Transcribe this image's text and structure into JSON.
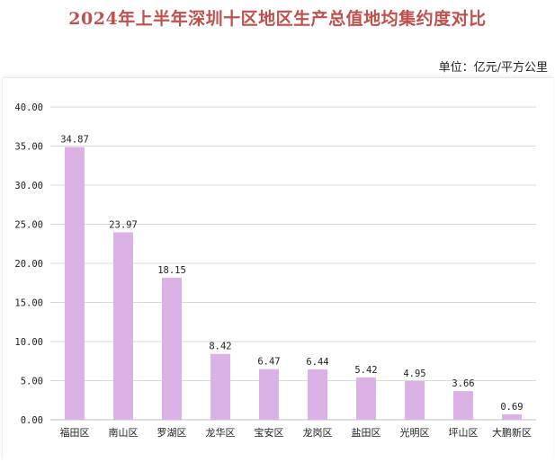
{
  "title": "2024年上半年深圳十区地区生产总值地均集约度对比",
  "unit": "单位：亿元/平方公里",
  "colors": {
    "bar": "#dab2e6",
    "grid": "#d9d9d9",
    "title": "#c0504d"
  },
  "chart_data": {
    "type": "bar",
    "title": "2024年上半年深圳十区地区生产总值地均集约度对比",
    "unit_note": "单位：亿元/平方公里",
    "categories": [
      "福田区",
      "南山区",
      "罗湖区",
      "龙华区",
      "宝安区",
      "龙岗区",
      "盐田区",
      "光明区",
      "坪山区",
      "大鹏新区"
    ],
    "values": [
      34.87,
      23.97,
      18.15,
      8.42,
      6.47,
      6.44,
      5.42,
      4.95,
      3.66,
      0.69
    ],
    "value_labels": [
      "34.87",
      "23.97",
      "18.15",
      "8.42",
      "6.47",
      "6.44",
      "5.42",
      "4.95",
      "3.66",
      "0.69"
    ],
    "yticks": [
      "0.00",
      "5.00",
      "10.00",
      "15.00",
      "20.00",
      "25.00",
      "30.00",
      "35.00",
      "40.00"
    ],
    "ylim": [
      0,
      40
    ],
    "grid": true,
    "xlabel": "",
    "ylabel": ""
  }
}
